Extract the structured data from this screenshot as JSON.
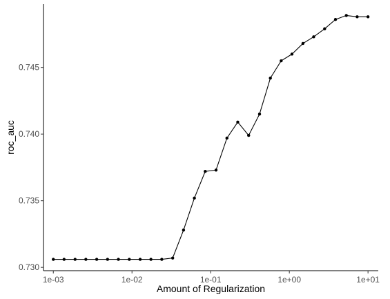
{
  "chart_data": {
    "type": "line",
    "title": "",
    "xlabel": "Amount of Regularization",
    "ylabel": "roc_auc",
    "x_scale": "log10",
    "xlim": [
      0.00075,
      13.5
    ],
    "ylim": [
      0.72975,
      0.74975
    ],
    "x_ticks": [
      0.001,
      0.01,
      0.1,
      1,
      10
    ],
    "x_tick_labels": [
      "1e-03",
      "1e-02",
      "1e-01",
      "1e+00",
      "1e+01"
    ],
    "y_ticks": [
      0.73,
      0.735,
      0.74,
      0.745
    ],
    "y_tick_labels": [
      "0.730",
      "0.735",
      "0.740",
      "0.745"
    ],
    "grid": false,
    "legend": "none",
    "series": [
      {
        "line_color": "#000000",
        "marker": "point",
        "x": [
          0.001,
          0.00137,
          0.00189,
          0.00259,
          0.00356,
          0.00489,
          0.00672,
          0.00924,
          0.0127,
          0.0174,
          0.0239,
          0.0329,
          0.0452,
          0.0621,
          0.0853,
          0.117,
          0.161,
          0.221,
          0.304,
          0.418,
          0.574,
          0.788,
          1.08,
          1.49,
          2.04,
          2.81,
          3.86,
          5.3,
          7.28,
          10.0
        ],
        "y": [
          0.7306,
          0.7306,
          0.7306,
          0.7306,
          0.7306,
          0.7306,
          0.7306,
          0.7306,
          0.7306,
          0.7306,
          0.7306,
          0.7307,
          0.7328,
          0.7352,
          0.7372,
          0.7373,
          0.7397,
          0.7409,
          0.7399,
          0.7415,
          0.7442,
          0.7455,
          0.746,
          0.7468,
          0.7473,
          0.7479,
          0.7486,
          0.7489,
          0.7488,
          0.7488
        ]
      }
    ]
  }
}
